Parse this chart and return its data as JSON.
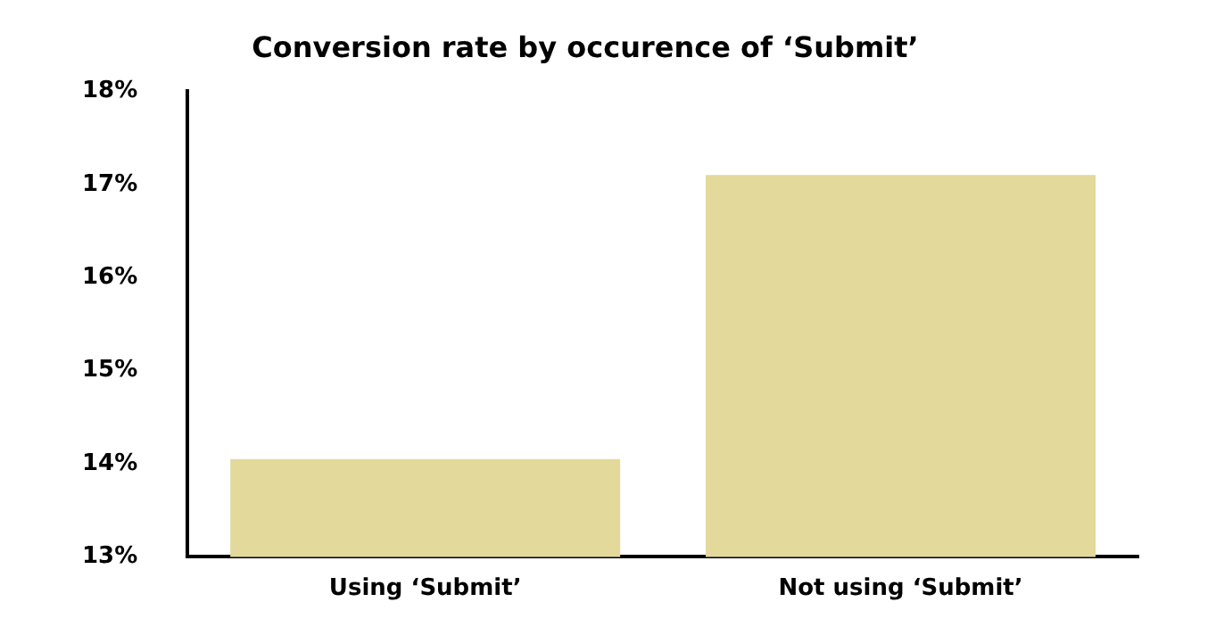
{
  "chart_data": {
    "type": "bar",
    "title": "Conversion rate by occurence of ‘Submit’",
    "categories": [
      "Using ‘Submit’",
      "Not using ‘Submit’"
    ],
    "values": [
      14.05,
      17.1
    ],
    "color": "#e2d99a",
    "ylim": [
      13,
      18
    ],
    "yticks": [
      {
        "value": 13,
        "label": "13%"
      },
      {
        "value": 14,
        "label": "14%"
      },
      {
        "value": 15,
        "label": "15%"
      },
      {
        "value": 16,
        "label": "16%"
      },
      {
        "value": 17,
        "label": "17%"
      },
      {
        "value": 18,
        "label": "18%"
      }
    ],
    "grid": false,
    "legend": false
  }
}
